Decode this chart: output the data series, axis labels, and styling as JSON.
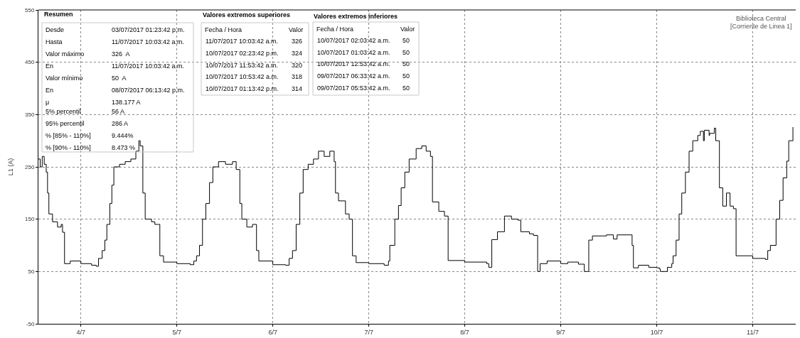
{
  "chart_data": {
    "type": "step",
    "ylabel": "L1 (A)",
    "xlim": [
      "2017-07-03T13:23",
      "2017-07-11T10:45"
    ],
    "xticks": [
      {
        "value": "2017-07-04",
        "label": "4/7"
      },
      {
        "value": "2017-07-05",
        "label": "5/7"
      },
      {
        "value": "2017-07-06",
        "label": "6/7"
      },
      {
        "value": "2017-07-07",
        "label": "7/7"
      },
      {
        "value": "2017-07-08",
        "label": "8/7"
      },
      {
        "value": "2017-07-09",
        "label": "9/7"
      },
      {
        "value": "2017-07-10",
        "label": "10/7"
      },
      {
        "value": "2017-07-11",
        "label": "11/7"
      }
    ],
    "ylim": [
      -50,
      550
    ],
    "yticks": [
      -50,
      50,
      150,
      250,
      350,
      450,
      550
    ],
    "grid": true,
    "marker": "none",
    "line_style": "solid",
    "series": [
      {
        "color": "#000000",
        "x": [
          "2017-07-03T13:23",
          "2017-07-03T13:50",
          "2017-07-03T14:20",
          "2017-07-03T14:50",
          "2017-07-03T15:20",
          "2017-07-03T15:40",
          "2017-07-03T16:00",
          "2017-07-03T16:55",
          "2017-07-03T18:10",
          "2017-07-03T19:05",
          "2017-07-03T19:25",
          "2017-07-03T19:55",
          "2017-07-03T21:20",
          "2017-07-04T00:00",
          "2017-07-04T02:40",
          "2017-07-04T03:50",
          "2017-07-04T04:25",
          "2017-07-04T05:20",
          "2017-07-04T06:00",
          "2017-07-04T06:30",
          "2017-07-04T07:15",
          "2017-07-04T07:45",
          "2017-07-04T08:15",
          "2017-07-04T09:40",
          "2017-07-04T11:05",
          "2017-07-04T12:30",
          "2017-07-04T13:45",
          "2017-07-04T14:30",
          "2017-07-04T14:50",
          "2017-07-04T15:30",
          "2017-07-04T16:05",
          "2017-07-04T17:40",
          "2017-07-04T18:30",
          "2017-07-04T19:00",
          "2017-07-04T19:45",
          "2017-07-04T20:40",
          "2017-07-05T00:00",
          "2017-07-05T03:20",
          "2017-07-05T04:15",
          "2017-07-05T04:55",
          "2017-07-05T05:40",
          "2017-07-05T06:25",
          "2017-07-05T07:15",
          "2017-07-05T08:10",
          "2017-07-05T09:00",
          "2017-07-05T10:25",
          "2017-07-05T12:10",
          "2017-07-05T13:55",
          "2017-07-05T14:50",
          "2017-07-05T15:45",
          "2017-07-05T16:15",
          "2017-07-05T17:30",
          "2017-07-05T18:55",
          "2017-07-05T19:55",
          "2017-07-05T20:30",
          "2017-07-06T00:00",
          "2017-07-06T03:10",
          "2017-07-06T04:05",
          "2017-07-06T04:55",
          "2017-07-06T05:50",
          "2017-07-06T06:45",
          "2017-07-06T07:35",
          "2017-07-06T08:50",
          "2017-07-06T10:10",
          "2017-07-06T11:25",
          "2017-07-06T12:50",
          "2017-07-06T14:15",
          "2017-07-06T15:20",
          "2017-07-06T15:40",
          "2017-07-06T16:25",
          "2017-07-06T18:10",
          "2017-07-06T19:05",
          "2017-07-06T19:55",
          "2017-07-06T20:50",
          "2017-07-07T00:00",
          "2017-07-07T03:50",
          "2017-07-07T04:55",
          "2017-07-07T05:15",
          "2017-07-07T06:30",
          "2017-07-07T07:25",
          "2017-07-07T08:05",
          "2017-07-07T09:00",
          "2017-07-07T10:05",
          "2017-07-07T11:50",
          "2017-07-07T13:15",
          "2017-07-07T14:20",
          "2017-07-07T15:25",
          "2017-07-07T15:55",
          "2017-07-07T17:30",
          "2017-07-07T18:55",
          "2017-07-07T19:50",
          "2017-07-08T00:00",
          "2017-07-08T05:30",
          "2017-07-08T06:00",
          "2017-07-08T06:45",
          "2017-07-08T08:10",
          "2017-07-08T09:55",
          "2017-07-08T11:40",
          "2017-07-08T13:20",
          "2017-07-08T14:00",
          "2017-07-08T16:10",
          "2017-07-08T17:10",
          "2017-07-08T18:13",
          "2017-07-08T18:50",
          "2017-07-08T20:35",
          "2017-07-09T00:00",
          "2017-07-09T01:45",
          "2017-07-09T04:25",
          "2017-07-09T05:53",
          "2017-07-09T06:33",
          "2017-07-09T07:00",
          "2017-07-09T07:55",
          "2017-07-09T11:25",
          "2017-07-09T13:10",
          "2017-07-09T14:05",
          "2017-07-09T17:20",
          "2017-07-09T17:50",
          "2017-07-09T18:10",
          "2017-07-09T19:25",
          "2017-07-09T22:00",
          "2017-07-10T00:00",
          "2017-07-10T00:40",
          "2017-07-10T00:53",
          "2017-07-10T01:03",
          "2017-07-10T02:03",
          "2017-07-10T02:40",
          "2017-07-10T03:45",
          "2017-07-10T04:05",
          "2017-07-10T04:50",
          "2017-07-10T05:35",
          "2017-07-10T06:15",
          "2017-07-10T07:10",
          "2017-07-10T08:05",
          "2017-07-10T09:00",
          "2017-07-10T10:15",
          "2017-07-10T10:53",
          "2017-07-10T11:40",
          "2017-07-10T11:53",
          "2017-07-10T13:05",
          "2017-07-10T13:13",
          "2017-07-10T14:23",
          "2017-07-10T14:45",
          "2017-07-10T15:40",
          "2017-07-10T16:30",
          "2017-07-10T17:25",
          "2017-07-10T18:20",
          "2017-07-10T19:10",
          "2017-07-10T19:50",
          "2017-07-11T00:00",
          "2017-07-11T03:10",
          "2017-07-11T03:45",
          "2017-07-11T04:25",
          "2017-07-11T05:50",
          "2017-07-11T06:45",
          "2017-07-11T07:35",
          "2017-07-11T08:30",
          "2017-07-11T09:00",
          "2017-07-11T10:03"
        ],
        "values": [
          265,
          250,
          270,
          255,
          240,
          200,
          160,
          145,
          135,
          140,
          125,
          65,
          70,
          65,
          62,
          60,
          75,
          90,
          110,
          140,
          180,
          215,
          250,
          255,
          260,
          265,
          280,
          300,
          290,
          200,
          150,
          145,
          140,
          140,
          80,
          68,
          65,
          63,
          70,
          80,
          100,
          150,
          180,
          220,
          250,
          260,
          255,
          260,
          245,
          180,
          150,
          135,
          140,
          90,
          70,
          63,
          62,
          75,
          90,
          140,
          200,
          245,
          255,
          265,
          280,
          270,
          280,
          260,
          200,
          185,
          160,
          150,
          80,
          67,
          65,
          62,
          70,
          100,
          150,
          176,
          210,
          240,
          265,
          285,
          290,
          280,
          270,
          183,
          165,
          156,
          71,
          68,
          65,
          58,
          111,
          126,
          156,
          150,
          148,
          126,
          122,
          119,
          50,
          65,
          70,
          65,
          68,
          64,
          50,
          50,
          110,
          118,
          120,
          112,
          120,
          120,
          100,
          57,
          62,
          58,
          57,
          55,
          50,
          50,
          50,
          58,
          65,
          80,
          110,
          160,
          200,
          240,
          280,
          300,
          310,
          318,
          300,
          320,
          310,
          314,
          324,
          300,
          210,
          175,
          200,
          175,
          170,
          80,
          75,
          73,
          90,
          100,
          150,
          186,
          229,
          261,
          300,
          326
        ]
      }
    ],
    "annotations": [
      "Resumen",
      "Desde",
      "03/07/2017 01:23:42 p.m.",
      "Hasta",
      "11/07/2017 10:03:42 a.m.",
      "Valor máximo",
      "326  A",
      "En",
      "11/07/2017 10:03:42 a.m.",
      "Valor mínimo",
      "50  A",
      "En",
      "08/07/2017 06:13:42 p.m.",
      "μ",
      "138.177 A",
      "5% percentil",
      "56 A",
      "95% percentil",
      "286 A",
      "% [85% - 110%]",
      "9.444%",
      "% [90% - 110%]",
      "8.473 %",
      "Valores extremos superiores",
      "Fecha / Hora",
      "Valor",
      "11/07/2017 10:03:42 a.m.",
      "326",
      "10/07/2017 02:23:42 p.m.",
      "324",
      "10/07/2017 11:53:42 a.m.",
      "320",
      "10/07/2017 10:53:42 a.m.",
      "318",
      "10/07/2017 01:13:42 p.m.",
      "314",
      "Valores extremos inferiores",
      "Fecha / Hora",
      "Valor",
      "10/07/2017 02:03:42 a.m.",
      "50",
      "10/07/2017 01:03:42 a.m.",
      "50",
      "10/07/2017 12:53:42 a.m.",
      "50",
      "09/07/2017 06:33:42 a.m.",
      "50",
      "09/07/2017 05:53:42 a.m.",
      "50",
      "Biblioteca Central",
      "[Corriente de Linea 1]"
    ]
  }
}
